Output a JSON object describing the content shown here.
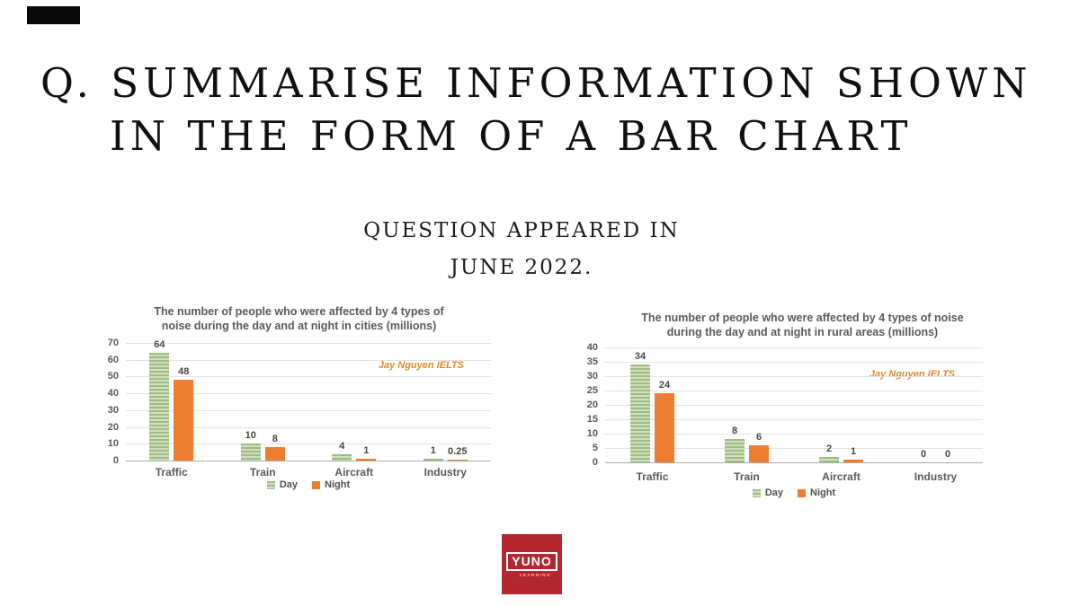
{
  "title": {
    "line1": "Q. SUMMARISE INFORMATION SHOWN",
    "line2": "IN THE FORM OF A BAR CHART"
  },
  "subtitle": {
    "line1": "QUESTION APPEARED IN",
    "line2": "JUNE 2022."
  },
  "chart_data": [
    {
      "type": "bar",
      "title": "The number of people who were affected by 4 types of noise during the day and at night in cities (millions)",
      "categories": [
        "Traffic",
        "Train",
        "Aircraft",
        "Industry"
      ],
      "series": [
        {
          "name": "Day",
          "values": [
            64,
            10,
            4,
            1
          ],
          "labels": [
            "64",
            "10",
            "4",
            "1"
          ]
        },
        {
          "name": "Night",
          "values": [
            48,
            8,
            1,
            0.25
          ],
          "labels": [
            "48",
            "8",
            "1",
            "0.25"
          ]
        }
      ],
      "ylabel": "",
      "xlabel": "",
      "ylim": [
        0,
        70
      ],
      "ytick_step": 10,
      "grid": true,
      "legend_position": "bottom",
      "watermark": "Jay Nguyen IELTS"
    },
    {
      "type": "bar",
      "title": "The number of people who were affected by 4 types of noise during the day and at night in rural areas (millions)",
      "categories": [
        "Traffic",
        "Train",
        "Aircraft",
        "Industry"
      ],
      "series": [
        {
          "name": "Day",
          "values": [
            34,
            8,
            2,
            0
          ],
          "labels": [
            "34",
            "8",
            "2",
            "0"
          ]
        },
        {
          "name": "Night",
          "values": [
            24,
            6,
            1,
            0
          ],
          "labels": [
            "24",
            "6",
            "1",
            "0"
          ]
        }
      ],
      "ylabel": "",
      "xlabel": "",
      "ylim": [
        0,
        40
      ],
      "ytick_step": 5,
      "grid": true,
      "legend_position": "bottom",
      "watermark": "Jay Nguyen IELTS"
    }
  ],
  "colors": {
    "day_fill": "#9fbb85",
    "day_stripe": "#cfdfbb",
    "night_fill": "#ed7d31",
    "grid_line": "#e2e2e2",
    "axis_line": "#ababab",
    "chart_text": "#595959",
    "value_label": "#4a463f",
    "watermark": "#de8a2b",
    "logo_red": "#b22730"
  },
  "logo": {
    "brand": "YUNO",
    "tagline": "LEARNING"
  }
}
